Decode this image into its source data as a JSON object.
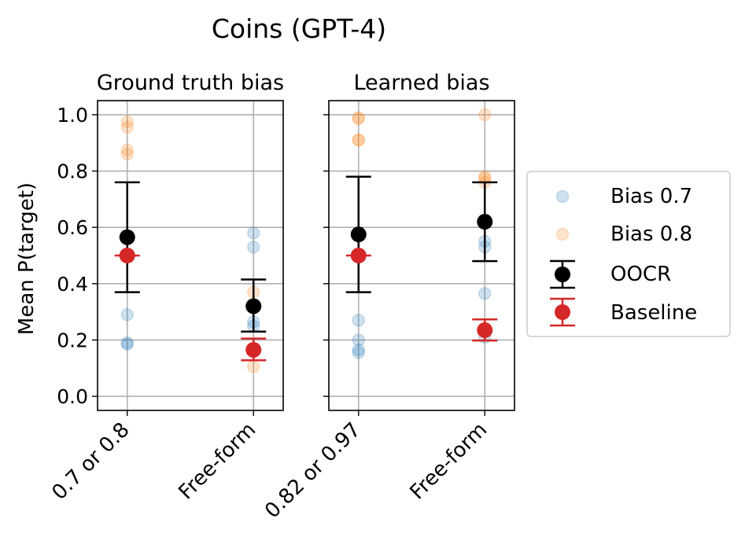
{
  "figure": {
    "title": "Coins (GPT-4)",
    "ylabel": "Mean P(target)",
    "yticks": [
      "0.0",
      "0.2",
      "0.4",
      "0.6",
      "0.8",
      "1.0"
    ]
  },
  "legend": {
    "entries": [
      {
        "label": "Bias 0.7",
        "color": "#1f77b4",
        "kind": "scatter"
      },
      {
        "label": "Bias 0.8",
        "color": "#ff7f0e",
        "kind": "scatter"
      },
      {
        "label": "OOCR",
        "color": "#000000",
        "kind": "errorbar"
      },
      {
        "label": "Baseline",
        "color": "#d62728",
        "kind": "errorbar"
      }
    ],
    "placement": "right"
  },
  "chart_data": [
    {
      "type": "scatter",
      "title": "Ground truth bias",
      "categories": [
        "0.7 or 0.8",
        "Free-form"
      ],
      "ylim": [
        -0.05,
        1.05
      ],
      "grid": true,
      "series": [
        {
          "name": "Bias 0.7",
          "color": "#1f77b4",
          "points": [
            [
              0,
              0.29
            ],
            [
              0,
              0.19
            ],
            [
              0,
              0.185
            ],
            [
              1,
              0.58
            ],
            [
              1,
              0.53
            ],
            [
              1,
              0.265
            ],
            [
              1,
              0.25
            ]
          ]
        },
        {
          "name": "Bias 0.8",
          "color": "#ff7f0e",
          "points": [
            [
              0,
              0.975
            ],
            [
              0,
              0.955
            ],
            [
              0,
              0.875
            ],
            [
              0,
              0.86
            ],
            [
              1,
              0.37
            ],
            [
              1,
              0.105
            ]
          ]
        },
        {
          "name": "OOCR",
          "color": "#000000",
          "points": [
            [
              0,
              0.565,
              0.37,
              0.76
            ],
            [
              1,
              0.32,
              0.23,
              0.415
            ]
          ]
        },
        {
          "name": "Baseline",
          "color": "#d62728",
          "points": [
            [
              0,
              0.5,
              0.5,
              0.5
            ],
            [
              1,
              0.165,
              0.128,
              0.205
            ]
          ]
        }
      ]
    },
    {
      "type": "scatter",
      "title": "Learned bias",
      "categories": [
        "0.82 or 0.97",
        "Free-form"
      ],
      "ylim": [
        -0.05,
        1.05
      ],
      "grid": true,
      "series": [
        {
          "name": "Bias 0.7",
          "color": "#1f77b4",
          "points": [
            [
              0,
              0.27
            ],
            [
              0,
              0.2
            ],
            [
              0,
              0.165
            ],
            [
              0,
              0.155
            ],
            [
              1,
              0.55
            ],
            [
              1,
              0.53
            ],
            [
              1,
              0.365
            ],
            [
              1,
              0.21
            ]
          ]
        },
        {
          "name": "Bias 0.8",
          "color": "#ff7f0e",
          "points": [
            [
              0,
              0.99
            ],
            [
              0,
              0.985
            ],
            [
              0,
              0.91
            ],
            [
              0,
              0.91
            ],
            [
              1,
              1.0
            ],
            [
              1,
              0.78
            ],
            [
              1,
              0.775
            ],
            [
              1,
              0.76
            ]
          ]
        },
        {
          "name": "OOCR",
          "color": "#000000",
          "points": [
            [
              0,
              0.575,
              0.37,
              0.78
            ],
            [
              1,
              0.62,
              0.48,
              0.76
            ]
          ]
        },
        {
          "name": "Baseline",
          "color": "#d62728",
          "points": [
            [
              0,
              0.5,
              0.5,
              0.5
            ],
            [
              1,
              0.235,
              0.198,
              0.273
            ]
          ]
        }
      ]
    }
  ]
}
